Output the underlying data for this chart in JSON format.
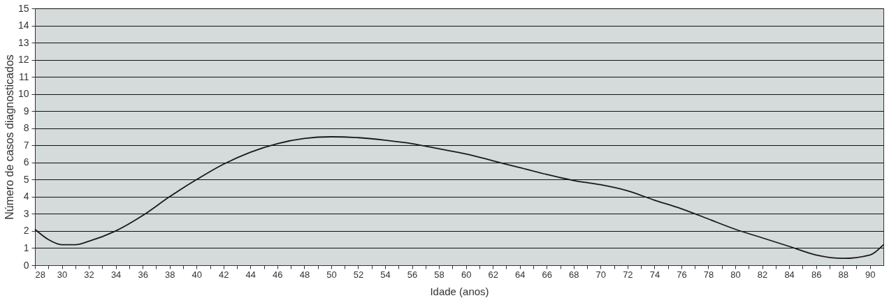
{
  "chart_data": {
    "type": "line",
    "xlabel": "Idade (anos)",
    "ylabel": "Número de casos diagnosticados",
    "x": [
      28,
      29,
      30,
      31,
      32,
      34,
      36,
      38,
      40,
      42,
      44,
      46,
      48,
      50,
      52,
      54,
      56,
      58,
      60,
      62,
      64,
      66,
      68,
      70,
      72,
      74,
      76,
      78,
      80,
      82,
      84,
      86,
      88,
      90,
      91
    ],
    "series": [
      {
        "color": "#1a1a1a",
        "values": [
          2.1,
          1.5,
          1.2,
          1.2,
          1.4,
          2.0,
          2.9,
          4.0,
          5.0,
          5.9,
          6.6,
          7.1,
          7.4,
          7.5,
          7.45,
          7.3,
          7.1,
          6.8,
          6.5,
          6.1,
          5.7,
          5.3,
          4.95,
          4.7,
          4.35,
          3.8,
          3.3,
          2.7,
          2.1,
          1.6,
          1.1,
          0.6,
          0.4,
          0.6,
          1.2
        ]
      }
    ],
    "xlim": [
      28,
      91
    ],
    "xticks": [
      28,
      {
        "value": 29,
        "label": null
      },
      30,
      {
        "value": 31,
        "label": null
      },
      32,
      {
        "value": 33,
        "label": null
      },
      34,
      {
        "value": 35,
        "label": null
      },
      36,
      {
        "value": 37,
        "label": null
      },
      38,
      {
        "value": 39,
        "label": null
      },
      40,
      {
        "value": 41,
        "label": null
      },
      42,
      {
        "value": 43,
        "label": null
      },
      44,
      {
        "value": 45,
        "label": null
      },
      46,
      {
        "value": 47,
        "label": null
      },
      48,
      {
        "value": 49,
        "label": null
      },
      50,
      {
        "value": 51,
        "label": null
      },
      52,
      {
        "value": 53,
        "label": null
      },
      54,
      {
        "value": 55,
        "label": null
      },
      56,
      {
        "value": 57,
        "label": null
      },
      58,
      {
        "value": 59,
        "label": null
      },
      60,
      {
        "value": 61,
        "label": null
      },
      62,
      {
        "value": 63,
        "label": null
      },
      64,
      {
        "value": 65,
        "label": null
      },
      66,
      {
        "value": 67,
        "label": null
      },
      68,
      {
        "value": 69,
        "label": null
      },
      70,
      {
        "value": 71,
        "label": null
      },
      72,
      {
        "value": 73,
        "label": null
      },
      74,
      {
        "value": 75,
        "label": null
      },
      76,
      {
        "value": 77,
        "label": null
      },
      78,
      {
        "value": 79,
        "label": null
      },
      80,
      {
        "value": 81,
        "label": null
      },
      82,
      {
        "value": 83,
        "label": null
      },
      84,
      {
        "value": 85,
        "label": null
      },
      86,
      {
        "value": 87,
        "label": null
      },
      88,
      {
        "value": 89,
        "label": null
      },
      90
    ],
    "ylim": [
      0,
      15
    ],
    "yticks": [
      0,
      1,
      2,
      3,
      4,
      5,
      6,
      7,
      8,
      9,
      10,
      11,
      12,
      13,
      14,
      15
    ],
    "grid": "y",
    "marker": "none",
    "line_style": "solid"
  }
}
